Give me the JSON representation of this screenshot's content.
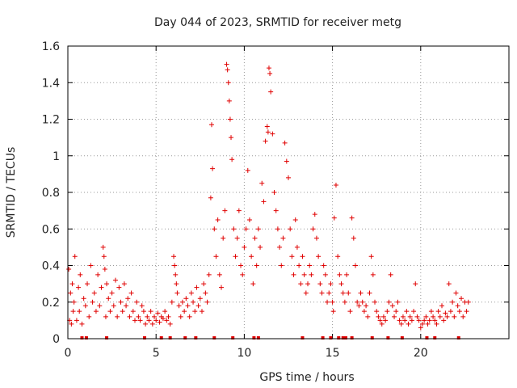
{
  "chart_data": {
    "type": "scatter",
    "title": "Day 044 of 2023, SRMTID for receiver metg",
    "xlabel": "GPS time / hours",
    "ylabel": "SRMTID / TECUs",
    "xlim": [
      0,
      25
    ],
    "ylim": [
      0,
      1.6
    ],
    "xticks": [
      0,
      5,
      10,
      15,
      20
    ],
    "yticks": [
      0,
      0.2,
      0.4,
      0.6,
      0.8,
      1,
      1.2,
      1.4,
      1.6
    ],
    "xtick_labels": [
      "0",
      "5",
      "10",
      "15",
      "20"
    ],
    "ytick_labels": [
      "0",
      "0.2",
      "0.4",
      "0.6",
      "0.8",
      "1",
      "1.2",
      "1.4",
      "1.6"
    ],
    "grid": true,
    "marker": "+",
    "color": "#e00000",
    "series": [
      {
        "name": "SRMTID",
        "x": [
          0.05,
          0.1,
          0.15,
          0.2,
          0.25,
          0.3,
          0.35,
          0.4,
          0.5,
          0.6,
          0.65,
          0.7,
          0.8,
          0.9,
          1.0,
          1.1,
          1.2,
          1.3,
          1.4,
          1.5,
          1.6,
          1.7,
          1.8,
          1.9,
          2.0,
          2.05,
          2.1,
          2.15,
          2.2,
          2.3,
          2.4,
          2.5,
          2.6,
          2.7,
          2.8,
          2.9,
          3.0,
          3.1,
          3.2,
          3.3,
          3.4,
          3.5,
          3.6,
          3.7,
          3.8,
          3.9,
          4.0,
          4.1,
          4.2,
          4.3,
          4.4,
          4.5,
          4.6,
          4.7,
          4.8,
          4.9,
          5.0,
          5.1,
          5.2,
          5.3,
          5.4,
          5.5,
          5.6,
          5.7,
          5.8,
          5.9,
          6.0,
          6.05,
          6.1,
          6.15,
          6.2,
          6.3,
          6.4,
          6.5,
          6.6,
          6.7,
          6.8,
          6.9,
          7.0,
          7.1,
          7.2,
          7.3,
          7.4,
          7.5,
          7.6,
          7.7,
          7.8,
          7.9,
          8.0,
          8.1,
          8.15,
          8.2,
          8.3,
          8.4,
          8.5,
          8.6,
          8.7,
          8.8,
          8.9,
          9.0,
          9.05,
          9.1,
          9.15,
          9.2,
          9.25,
          9.3,
          9.4,
          9.5,
          9.6,
          9.7,
          9.8,
          9.9,
          10.0,
          10.1,
          10.2,
          10.3,
          10.4,
          10.5,
          10.6,
          10.7,
          10.8,
          10.9,
          11.0,
          11.1,
          11.2,
          11.3,
          11.35,
          11.4,
          11.45,
          11.5,
          11.6,
          11.7,
          11.8,
          11.9,
          12.0,
          12.1,
          12.2,
          12.3,
          12.4,
          12.5,
          12.6,
          12.7,
          12.8,
          12.9,
          13.0,
          13.1,
          13.2,
          13.3,
          13.4,
          13.5,
          13.6,
          13.7,
          13.8,
          13.9,
          14.0,
          14.1,
          14.2,
          14.3,
          14.4,
          14.5,
          14.6,
          14.7,
          14.8,
          14.9,
          15.0,
          15.05,
          15.1,
          15.2,
          15.3,
          15.4,
          15.5,
          15.6,
          15.7,
          15.8,
          15.9,
          16.0,
          16.1,
          16.2,
          16.3,
          16.4,
          16.5,
          16.6,
          16.7,
          16.8,
          16.9,
          17.0,
          17.1,
          17.2,
          17.3,
          17.4,
          17.5,
          17.6,
          17.7,
          17.8,
          17.9,
          18.0,
          18.1,
          18.2,
          18.3,
          18.4,
          18.5,
          18.6,
          18.7,
          18.8,
          18.9,
          19.0,
          19.1,
          19.2,
          19.3,
          19.4,
          19.5,
          19.6,
          19.7,
          19.8,
          19.9,
          20.0,
          20.1,
          20.2,
          20.3,
          20.4,
          20.5,
          20.6,
          20.7,
          20.8,
          20.9,
          21.0,
          21.1,
          21.2,
          21.3,
          21.4,
          21.5,
          21.6,
          21.7,
          21.8,
          21.9,
          22.0,
          22.1,
          22.2,
          22.3,
          22.4,
          22.5,
          22.6,
          22.7
        ],
        "y": [
          0.38,
          0.1,
          0.25,
          0.08,
          0.3,
          0.15,
          0.2,
          0.45,
          0.1,
          0.28,
          0.15,
          0.35,
          0.08,
          0.22,
          0.18,
          0.3,
          0.12,
          0.4,
          0.2,
          0.25,
          0.15,
          0.35,
          0.18,
          0.28,
          0.5,
          0.45,
          0.38,
          0.12,
          0.3,
          0.22,
          0.15,
          0.25,
          0.18,
          0.32,
          0.12,
          0.28,
          0.2,
          0.15,
          0.3,
          0.18,
          0.22,
          0.12,
          0.25,
          0.15,
          0.1,
          0.2,
          0.12,
          0.1,
          0.18,
          0.15,
          0.08,
          0.12,
          0.1,
          0.15,
          0.08,
          0.12,
          0.1,
          0.14,
          0.09,
          0.12,
          0.11,
          0.15,
          0.1,
          0.12,
          0.08,
          0.2,
          0.45,
          0.4,
          0.35,
          0.3,
          0.25,
          0.18,
          0.12,
          0.2,
          0.15,
          0.22,
          0.18,
          0.12,
          0.25,
          0.2,
          0.15,
          0.28,
          0.18,
          0.22,
          0.15,
          0.3,
          0.25,
          0.2,
          0.35,
          0.77,
          1.17,
          0.93,
          0.6,
          0.45,
          0.65,
          0.35,
          0.28,
          0.55,
          0.7,
          1.5,
          1.47,
          1.4,
          1.3,
          1.2,
          1.1,
          0.98,
          0.6,
          0.45,
          0.55,
          0.7,
          0.4,
          0.35,
          0.5,
          0.6,
          0.92,
          0.65,
          0.45,
          0.3,
          0.55,
          0.4,
          0.6,
          0.5,
          0.85,
          0.75,
          1.08,
          1.16,
          1.13,
          1.48,
          1.45,
          1.35,
          1.12,
          0.8,
          0.7,
          0.6,
          0.5,
          0.4,
          0.55,
          1.07,
          0.97,
          0.88,
          0.6,
          0.45,
          0.35,
          0.65,
          0.5,
          0.4,
          0.3,
          0.45,
          0.35,
          0.25,
          0.3,
          0.4,
          0.35,
          0.6,
          0.68,
          0.55,
          0.45,
          0.3,
          0.25,
          0.4,
          0.35,
          0.2,
          0.25,
          0.3,
          0.2,
          0.15,
          0.66,
          0.84,
          0.45,
          0.35,
          0.3,
          0.25,
          0.2,
          0.35,
          0.25,
          0.15,
          0.66,
          0.55,
          0.4,
          0.2,
          0.18,
          0.25,
          0.2,
          0.15,
          0.18,
          0.12,
          0.25,
          0.45,
          0.35,
          0.2,
          0.15,
          0.12,
          0.1,
          0.08,
          0.12,
          0.1,
          0.15,
          0.2,
          0.35,
          0.18,
          0.12,
          0.15,
          0.2,
          0.1,
          0.08,
          0.12,
          0.1,
          0.15,
          0.08,
          0.12,
          0.1,
          0.15,
          0.3,
          0.12,
          0.1,
          0.06,
          0.08,
          0.1,
          0.12,
          0.08,
          0.1,
          0.15,
          0.12,
          0.1,
          0.08,
          0.15,
          0.12,
          0.18,
          0.1,
          0.14,
          0.12,
          0.3,
          0.15,
          0.2,
          0.12,
          0.25,
          0.18,
          0.15,
          0.22,
          0.12,
          0.2,
          0.15,
          0.2
        ],
        "low_markers_x": [
          0.8,
          1.05,
          2.2,
          4.35,
          5.3,
          5.8,
          6.65,
          7.25,
          8.3,
          9.35,
          10.55,
          10.8,
          13.3,
          14.45,
          14.9,
          15.35,
          15.6,
          15.75,
          16.1,
          17.25,
          18.15,
          18.95,
          20.35,
          20.8,
          22.15
        ]
      }
    ]
  }
}
